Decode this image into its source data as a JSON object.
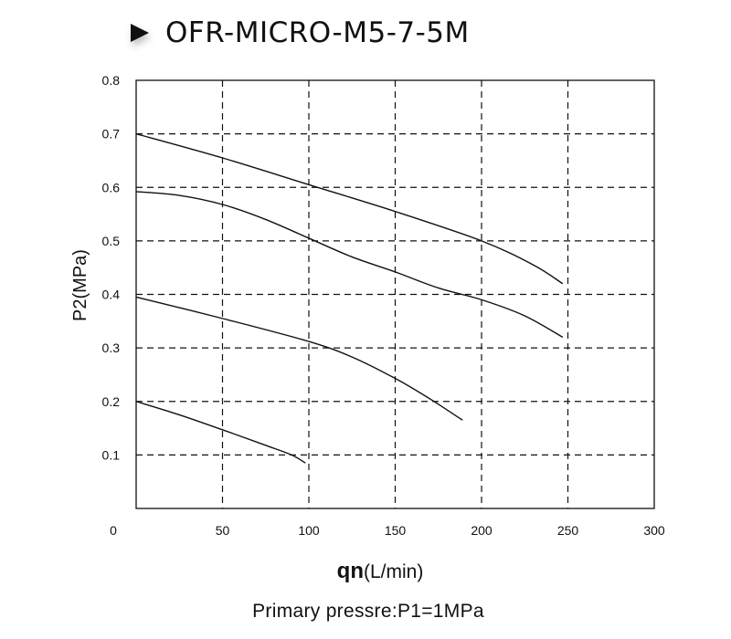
{
  "title": "OFR-MICRO-M5-7-5M",
  "footer": "Primary pressre:P1=1MPa",
  "chart_data": {
    "type": "line",
    "ylabel": "P2(MPa)",
    "xlabel_bold": "qn",
    "xlabel_unit": "(L/min)",
    "xlim": [
      0,
      300
    ],
    "ylim": [
      0,
      0.8
    ],
    "x_ticks": [
      "0",
      "50",
      "100",
      "150",
      "200",
      "250",
      "300"
    ],
    "y_ticks": [
      "0.1",
      "0.2",
      "0.3",
      "0.4",
      "0.5",
      "0.6",
      "0.7",
      "0.8"
    ],
    "grid": true,
    "grid_style": "dashed",
    "line_color": "#111111",
    "series": [
      {
        "x": [
          0,
          50,
          100,
          150,
          200,
          230,
          247
        ],
        "y": [
          0.7,
          0.655,
          0.605,
          0.555,
          0.5,
          0.455,
          0.42
        ]
      },
      {
        "x": [
          0,
          25,
          50,
          75,
          100,
          125,
          150,
          175,
          200,
          225,
          247
        ],
        "y": [
          0.592,
          0.585,
          0.568,
          0.54,
          0.505,
          0.47,
          0.442,
          0.412,
          0.39,
          0.36,
          0.32
        ]
      },
      {
        "x": [
          0,
          50,
          100,
          125,
          150,
          170,
          189
        ],
        "y": [
          0.395,
          0.355,
          0.312,
          0.283,
          0.243,
          0.205,
          0.165
        ]
      },
      {
        "x": [
          0,
          25,
          50,
          75,
          90,
          98
        ],
        "y": [
          0.2,
          0.175,
          0.147,
          0.118,
          0.1,
          0.085
        ]
      }
    ]
  }
}
